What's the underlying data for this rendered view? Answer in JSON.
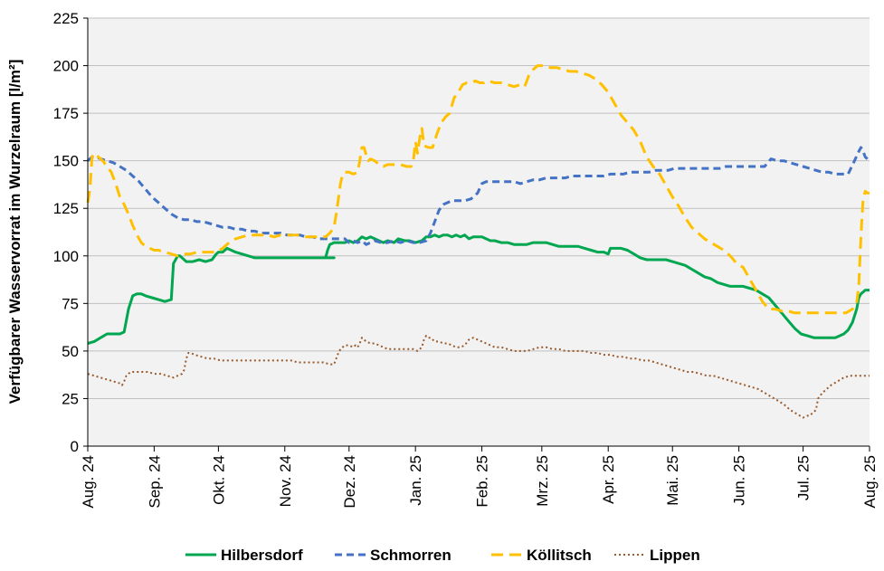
{
  "chart_data": {
    "type": "line",
    "title": "",
    "xlabel": "",
    "ylabel": "Verfügbarer Wasservorrat im Wurzelraum [l/m²]",
    "ylim": [
      0,
      225
    ],
    "yticks": [
      0,
      25,
      50,
      75,
      100,
      125,
      150,
      175,
      200,
      225
    ],
    "grid": "horizontal",
    "legend_position": "bottom",
    "plot_background": "#f2f2f2",
    "x_range_days": [
      0,
      365
    ],
    "xtick_labels": [
      "Aug. 24",
      "Sep. 24",
      "Okt. 24",
      "Nov. 24",
      "Dez. 24",
      "Jan. 25",
      "Feb. 25",
      "Mrz. 25",
      "Apr. 25",
      "Mai. 25",
      "Jun. 25",
      "Jul. 25",
      "Aug. 25"
    ],
    "xtick_days": [
      0,
      31,
      61,
      92,
      122,
      153,
      184,
      212,
      243,
      273,
      304,
      334,
      365
    ],
    "series": [
      {
        "name": "Hilbersdorf",
        "color": "#00a650",
        "dash": "solid",
        "x": [
          0,
          3,
          6,
          9,
          12,
          15,
          17,
          19,
          21,
          23,
          25,
          27,
          30,
          33,
          36,
          39,
          40,
          42,
          43,
          44,
          46,
          49,
          52,
          55,
          58,
          60,
          61,
          62,
          63,
          65,
          67,
          69,
          72,
          75,
          78,
          80,
          85,
          90,
          95,
          100,
          105,
          110,
          115,
          110,
          111,
          112,
          113,
          115,
          118,
          120,
          122,
          124,
          126,
          128,
          130,
          132,
          134,
          136,
          138,
          140,
          143,
          145,
          148,
          150,
          153,
          156,
          158,
          160,
          162,
          164,
          166,
          168,
          170,
          172,
          174,
          176,
          178,
          180,
          182,
          184,
          186,
          188,
          190,
          193,
          196,
          199,
          202,
          205,
          208,
          211,
          214,
          217,
          220,
          223,
          226,
          229,
          232,
          235,
          238,
          241,
          243,
          244,
          245,
          247,
          249,
          252,
          255,
          258,
          261,
          264,
          267,
          270,
          273,
          276,
          279,
          282,
          285,
          288,
          291,
          294,
          297,
          300,
          303,
          306,
          309,
          312,
          315,
          318,
          321,
          324,
          327,
          330,
          333,
          336,
          339,
          341,
          343,
          345,
          347,
          349,
          351,
          353,
          355,
          357,
          359,
          360,
          361,
          362,
          363,
          365
        ],
        "values": [
          54,
          55,
          57,
          59,
          59,
          59,
          60,
          72,
          79,
          80,
          80,
          79,
          78,
          77,
          76,
          77,
          96,
          100,
          100,
          99,
          97,
          97,
          98,
          97,
          98,
          101,
          102,
          102,
          102,
          104,
          103,
          102,
          101,
          100,
          99,
          99,
          99,
          99,
          99,
          99,
          99,
          99,
          99,
          99,
          99,
          103,
          106,
          107,
          107,
          107,
          108,
          107,
          108,
          110,
          109,
          110,
          109,
          108,
          107,
          108,
          107,
          109,
          108,
          108,
          107,
          108,
          110,
          110,
          111,
          110,
          111,
          111,
          110,
          111,
          110,
          111,
          109,
          110,
          110,
          110,
          109,
          108,
          108,
          107,
          107,
          106,
          106,
          106,
          107,
          107,
          107,
          106,
          105,
          105,
          105,
          105,
          104,
          103,
          102,
          102,
          101,
          104,
          104,
          104,
          104,
          103,
          101,
          99,
          98,
          98,
          98,
          98,
          97,
          96,
          95,
          93,
          91,
          89,
          88,
          86,
          85,
          84,
          84,
          84,
          83,
          82,
          80,
          78,
          74,
          70,
          66,
          62,
          59,
          58,
          57,
          57,
          57,
          57,
          57,
          57,
          58,
          59,
          61,
          65,
          72,
          78,
          80,
          81,
          82,
          82
        ]
      },
      {
        "name": "Schmorren",
        "color": "#4472c4",
        "dash": "dashed",
        "x": [
          0,
          2,
          4,
          6,
          9,
          12,
          15,
          18,
          21,
          24,
          27,
          30,
          33,
          36,
          39,
          42,
          45,
          48,
          51,
          54,
          57,
          60,
          63,
          66,
          69,
          72,
          75,
          78,
          81,
          84,
          87,
          90,
          93,
          96,
          99,
          102,
          105,
          108,
          111,
          114,
          117,
          120,
          122,
          124,
          126,
          128,
          130,
          132,
          134,
          137,
          140,
          143,
          146,
          149,
          152,
          155,
          158,
          160,
          162,
          164,
          166,
          168,
          170,
          173,
          176,
          179,
          182,
          184,
          186,
          188,
          190,
          193,
          196,
          199,
          202,
          205,
          208,
          211,
          214,
          217,
          220,
          223,
          226,
          229,
          232,
          235,
          238,
          241,
          244,
          247,
          250,
          253,
          256,
          259,
          262,
          265,
          268,
          271,
          274,
          277,
          280,
          283,
          286,
          289,
          292,
          295,
          298,
          301,
          304,
          307,
          310,
          313,
          316,
          319,
          322,
          325,
          328,
          331,
          334,
          337,
          340,
          343,
          346,
          349,
          352,
          355,
          358,
          360,
          361,
          362,
          363,
          365
        ],
        "values": [
          150,
          152,
          152,
          151,
          150,
          149,
          147,
          145,
          142,
          139,
          135,
          131,
          128,
          125,
          122,
          120,
          119,
          119,
          118,
          118,
          117,
          116,
          115,
          115,
          114,
          114,
          113,
          113,
          112,
          112,
          112,
          112,
          111,
          111,
          111,
          110,
          110,
          109,
          109,
          109,
          109,
          109,
          107,
          108,
          107,
          108,
          106,
          107,
          108,
          107,
          107,
          108,
          107,
          108,
          107,
          107,
          108,
          112,
          118,
          124,
          127,
          128,
          129,
          129,
          129,
          130,
          133,
          138,
          139,
          139,
          139,
          139,
          139,
          139,
          138,
          139,
          140,
          140,
          141,
          141,
          141,
          141,
          142,
          142,
          142,
          142,
          142,
          142,
          143,
          143,
          143,
          144,
          144,
          144,
          144,
          145,
          145,
          145,
          146,
          146,
          146,
          146,
          146,
          146,
          146,
          146,
          147,
          147,
          147,
          147,
          147,
          147,
          147,
          151,
          150,
          150,
          149,
          148,
          147,
          146,
          145,
          144,
          144,
          143,
          143,
          143,
          150,
          155,
          157,
          155,
          152,
          150
        ]
      },
      {
        "name": "Köllitsch",
        "color": "#ffc000",
        "dash": "longdash",
        "x": [
          0,
          1,
          2,
          3,
          5,
          7,
          9,
          11,
          13,
          15,
          17,
          19,
          21,
          23,
          25,
          27,
          29,
          31,
          33,
          36,
          39,
          42,
          45,
          48,
          51,
          54,
          57,
          60,
          63,
          66,
          69,
          72,
          75,
          78,
          81,
          84,
          87,
          90,
          93,
          96,
          99,
          102,
          105,
          108,
          111,
          113,
          115,
          116,
          117,
          118,
          119,
          120,
          122,
          124,
          126,
          127,
          128,
          129,
          130,
          131,
          132,
          134,
          136,
          138,
          140,
          143,
          146,
          149,
          151,
          152,
          153,
          154,
          155,
          156,
          157,
          159,
          161,
          163,
          165,
          167,
          169,
          171,
          173,
          175,
          177,
          179,
          181,
          183,
          185,
          187,
          190,
          193,
          196,
          199,
          202,
          204,
          206,
          208,
          210,
          213,
          216,
          219,
          222,
          225,
          228,
          231,
          234,
          237,
          240,
          243,
          246,
          249,
          252,
          255,
          258,
          261,
          264,
          267,
          270,
          273,
          276,
          279,
          282,
          285,
          288,
          291,
          294,
          297,
          300,
          303,
          306,
          309,
          312,
          315,
          318,
          321,
          324,
          327,
          330,
          333,
          336,
          339,
          342,
          345,
          348,
          351,
          354,
          357,
          359,
          360,
          361,
          362,
          363,
          364,
          365
        ],
        "values": [
          128,
          135,
          152,
          154,
          152,
          150,
          147,
          144,
          138,
          131,
          127,
          122,
          116,
          111,
          107,
          105,
          104,
          103,
          103,
          102,
          101,
          100,
          101,
          101,
          102,
          102,
          102,
          102,
          104,
          107,
          109,
          110,
          111,
          111,
          111,
          111,
          110,
          111,
          111,
          111,
          111,
          110,
          110,
          110,
          110,
          112,
          115,
          122,
          130,
          138,
          143,
          144,
          144,
          143,
          144,
          150,
          157,
          157,
          153,
          150,
          151,
          150,
          148,
          147,
          148,
          148,
          148,
          147,
          147,
          150,
          160,
          154,
          162,
          167,
          158,
          157,
          157,
          164,
          170,
          173,
          175,
          183,
          186,
          190,
          191,
          191,
          192,
          191,
          191,
          192,
          191,
          191,
          190,
          189,
          190,
          189,
          195,
          198,
          200,
          200,
          199,
          199,
          198,
          197,
          197,
          196,
          195,
          193,
          190,
          186,
          180,
          174,
          170,
          166,
          160,
          152,
          147,
          143,
          137,
          131,
          126,
          120,
          115,
          112,
          109,
          107,
          105,
          103,
          100,
          96,
          94,
          88,
          82,
          76,
          72,
          72,
          71,
          71,
          70,
          70,
          70,
          70,
          70,
          70,
          70,
          70,
          70,
          72,
          75,
          85,
          110,
          130,
          134,
          133,
          133
        ]
      },
      {
        "name": "Lippen",
        "color": "#9a5b2e",
        "dash": "dotted",
        "x": [
          0,
          3,
          6,
          9,
          12,
          15,
          16,
          17,
          18,
          19,
          20,
          22,
          25,
          28,
          31,
          34,
          37,
          40,
          42,
          44,
          45,
          46,
          47,
          48,
          50,
          53,
          56,
          59,
          62,
          65,
          68,
          71,
          74,
          77,
          80,
          83,
          86,
          89,
          92,
          95,
          98,
          101,
          104,
          107,
          110,
          113,
          115,
          116,
          117,
          118,
          119,
          120,
          122,
          124,
          125,
          126,
          127,
          128,
          129,
          130,
          132,
          134,
          136,
          138,
          140,
          143,
          146,
          149,
          152,
          154,
          155,
          156,
          157,
          158,
          159,
          160,
          161,
          162,
          164,
          166,
          168,
          170,
          172,
          174,
          176,
          178,
          180,
          182,
          184,
          186,
          188,
          190,
          193,
          196,
          199,
          202,
          205,
          208,
          211,
          214,
          217,
          220,
          223,
          226,
          229,
          232,
          235,
          238,
          241,
          244,
          247,
          250,
          253,
          256,
          259,
          262,
          265,
          268,
          271,
          274,
          277,
          280,
          283,
          286,
          289,
          292,
          295,
          298,
          301,
          304,
          307,
          310,
          313,
          316,
          319,
          322,
          325,
          328,
          331,
          334,
          336,
          337,
          338,
          339,
          340,
          341,
          343,
          345,
          347,
          350,
          353,
          356,
          359,
          361,
          363,
          365
        ],
        "values": [
          38,
          37,
          36,
          35,
          34,
          33,
          32,
          34,
          37,
          38,
          39,
          39,
          39,
          39,
          38,
          38,
          37,
          36,
          37,
          38,
          40,
          46,
          49,
          49,
          48,
          47,
          46,
          46,
          45,
          45,
          45,
          45,
          45,
          45,
          45,
          45,
          45,
          45,
          45,
          45,
          44,
          44,
          44,
          44,
          44,
          43,
          43,
          46,
          49,
          51,
          52,
          53,
          53,
          52,
          53,
          52,
          54,
          57,
          56,
          55,
          54,
          54,
          53,
          52,
          51,
          51,
          51,
          51,
          51,
          50,
          51,
          52,
          56,
          58,
          57,
          57,
          56,
          55,
          55,
          54,
          54,
          53,
          52,
          52,
          53,
          56,
          57,
          56,
          55,
          54,
          53,
          52,
          52,
          51,
          50,
          50,
          50,
          51,
          52,
          52,
          51,
          51,
          50,
          50,
          50,
          50,
          49,
          49,
          48,
          48,
          47,
          47,
          46,
          46,
          45,
          45,
          44,
          43,
          42,
          41,
          40,
          39,
          39,
          38,
          37,
          37,
          36,
          35,
          34,
          33,
          32,
          31,
          30,
          28,
          26,
          24,
          22,
          19,
          17,
          15,
          16,
          16,
          17,
          18,
          19,
          25,
          28,
          30,
          32,
          34,
          36,
          37,
          37,
          37,
          37,
          37
        ]
      }
    ]
  }
}
